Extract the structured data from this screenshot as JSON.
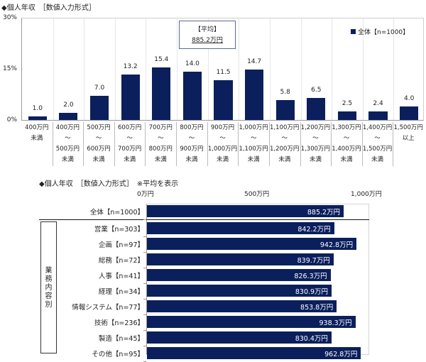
{
  "chart_data": [
    {
      "type": "bar",
      "title": "◆個人年収　［数値入力形式］",
      "xlabel": "",
      "ylabel": "",
      "ylim": [
        0,
        30
      ],
      "yticks": [
        "30%",
        "15%",
        "0%"
      ],
      "grid": true,
      "legend_position": "top-right",
      "categories": [
        "400万円\n未満",
        "400万円\n～\n500万円\n未満",
        "500万円\n～\n600万円\n未満",
        "600万円\n～\n700万円\n未満",
        "700万円\n～\n800万円\n未満",
        "800万円\n～\n900万円\n未満",
        "900万円\n～\n1,000万円\n未満",
        "1,000万円\n～\n1,100万円\n未満",
        "1,100万円\n～\n1,200万円\n未満",
        "1,200万円\n～\n1,300万円\n未満",
        "1,300万円\n～\n1,400万円\n未満",
        "1,400万円\n～\n1,500万円\n未満",
        "1,500万円\n以上"
      ],
      "series": [
        {
          "name": "全体【n=1000】",
          "values": [
            1.0,
            2.0,
            7.0,
            13.2,
            15.4,
            14.0,
            11.5,
            14.7,
            5.8,
            6.5,
            2.5,
            2.4,
            4.0
          ]
        }
      ],
      "value_labels": [
        "1.0",
        "2.0",
        "7.0",
        "13.2",
        "15.4",
        "14.0",
        "11.5",
        "14.7",
        "5.8",
        "6.5",
        "2.5",
        "2.4",
        "4.0"
      ],
      "annotation": {
        "label": "【平均】",
        "value": "885.2万円"
      }
    },
    {
      "type": "bar",
      "orientation": "horizontal",
      "title": "◆個人年収　［数値入力形式］　※平均を表示",
      "xlim": [
        0,
        1000
      ],
      "xticks": [
        "0万円",
        "500万円",
        "1,000万円"
      ],
      "group_label": "業務内容別",
      "categories": [
        "全体【n=1000】",
        "営業【n=303】",
        "企画【n=97】",
        "総務【n=72】",
        "人事【n=41】",
        "経理【n=34】",
        "情報システム【n=77】",
        "技術【n=236】",
        "製造【n=45】",
        "その他【n=95】"
      ],
      "values": [
        885.2,
        842.2,
        942.8,
        839.7,
        826.3,
        830.9,
        853.8,
        938.3,
        830.4,
        962.8
      ],
      "value_labels": [
        "885.2万円",
        "842.2万円",
        "942.8万円",
        "839.7万円",
        "826.3万円",
        "830.9万円",
        "853.8万円",
        "938.3万円",
        "830.4万円",
        "962.8万円"
      ]
    }
  ],
  "colors": {
    "bar": "#0b1f5c"
  },
  "top": {
    "title": "◆個人年収　［数値入力形式］",
    "yticks": [
      "30%",
      "15%",
      "0%"
    ],
    "avg_label": "【平均】",
    "avg_value": "885.2万円",
    "legend": "全体【n=1000】"
  },
  "bottom": {
    "title": "◆個人年収　［数値入力形式］　※平均を表示",
    "xticks": [
      "0万円",
      "500万円",
      "1,000万円"
    ],
    "group_label": "業\n務\n内\n容\n別"
  }
}
